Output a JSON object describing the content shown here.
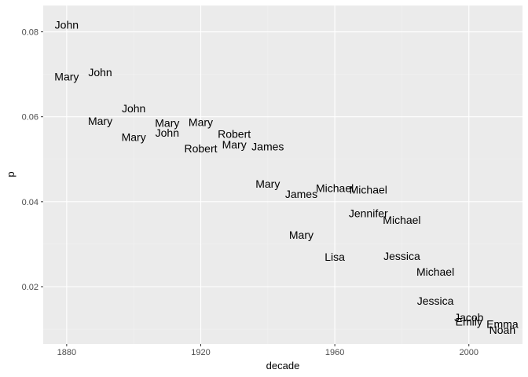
{
  "chart_data": {
    "type": "scatter",
    "title": "",
    "xlabel": "decade",
    "ylabel": "p",
    "xlim": [
      1873,
      2016
    ],
    "ylim": [
      0.0065,
      0.0862
    ],
    "x_ticks": [
      1880,
      1920,
      1960,
      2000
    ],
    "y_ticks": [
      0.02,
      0.04,
      0.06,
      0.08
    ],
    "x_tick_labels": [
      "1880",
      "1920",
      "1960",
      "2000"
    ],
    "y_tick_labels": [
      "0.02",
      "0.04",
      "0.06",
      "0.08"
    ],
    "grid": true,
    "legend": "none",
    "colors": {
      "panel_background": "#ebebeb",
      "grid_major": "#ffffff",
      "grid_minor": "#f2f2f2",
      "text": "#000000",
      "tick_text": "#4d4d4d",
      "axis_title": "#000000"
    },
    "points": [
      {
        "x": 1880,
        "y": 0.0817,
        "label": "John"
      },
      {
        "x": 1880,
        "y": 0.0695,
        "label": "Mary"
      },
      {
        "x": 1890,
        "y": 0.0705,
        "label": "John"
      },
      {
        "x": 1890,
        "y": 0.059,
        "label": "Mary"
      },
      {
        "x": 1900,
        "y": 0.062,
        "label": "John"
      },
      {
        "x": 1900,
        "y": 0.0552,
        "label": "Mary"
      },
      {
        "x": 1910,
        "y": 0.0586,
        "label": "Mary"
      },
      {
        "x": 1910,
        "y": 0.0562,
        "label": "John"
      },
      {
        "x": 1920,
        "y": 0.0587,
        "label": "Mary"
      },
      {
        "x": 1920,
        "y": 0.0525,
        "label": "Robert"
      },
      {
        "x": 1930,
        "y": 0.056,
        "label": "Robert"
      },
      {
        "x": 1930,
        "y": 0.0535,
        "label": "Mary"
      },
      {
        "x": 1940,
        "y": 0.053,
        "label": "James"
      },
      {
        "x": 1940,
        "y": 0.0442,
        "label": "Mary"
      },
      {
        "x": 1950,
        "y": 0.0418,
        "label": "James"
      },
      {
        "x": 1950,
        "y": 0.0322,
        "label": "Mary"
      },
      {
        "x": 1960,
        "y": 0.0432,
        "label": "Michael"
      },
      {
        "x": 1960,
        "y": 0.027,
        "label": "Lisa"
      },
      {
        "x": 1970,
        "y": 0.0428,
        "label": "Michael"
      },
      {
        "x": 1970,
        "y": 0.0373,
        "label": "Jennifer"
      },
      {
        "x": 1980,
        "y": 0.0357,
        "label": "Michael"
      },
      {
        "x": 1980,
        "y": 0.0272,
        "label": "Jessica"
      },
      {
        "x": 1990,
        "y": 0.0235,
        "label": "Michael"
      },
      {
        "x": 1990,
        "y": 0.0167,
        "label": "Jessica"
      },
      {
        "x": 2000,
        "y": 0.0128,
        "label": "Jacob"
      },
      {
        "x": 2000,
        "y": 0.0118,
        "label": "Emily"
      },
      {
        "x": 2010,
        "y": 0.0112,
        "label": "Emma"
      },
      {
        "x": 2010,
        "y": 0.0098,
        "label": "Noah"
      }
    ]
  }
}
